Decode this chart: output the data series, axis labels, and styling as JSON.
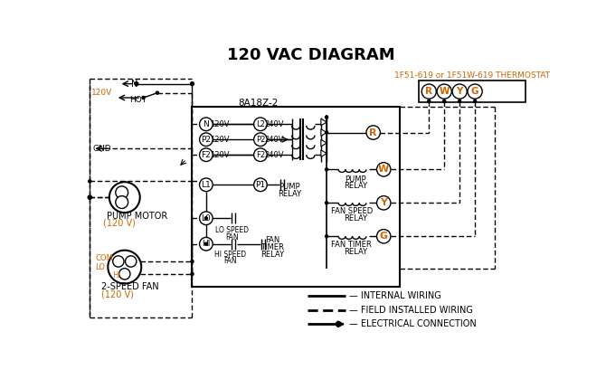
{
  "title": "120 VAC DIAGRAM",
  "background_color": "#ffffff",
  "thermostat_label": "1F51-619 or 1F51W-619 THERMOSTAT",
  "controller_label": "8A18Z-2",
  "orange_color": "#cc6600",
  "black_color": "#000000"
}
